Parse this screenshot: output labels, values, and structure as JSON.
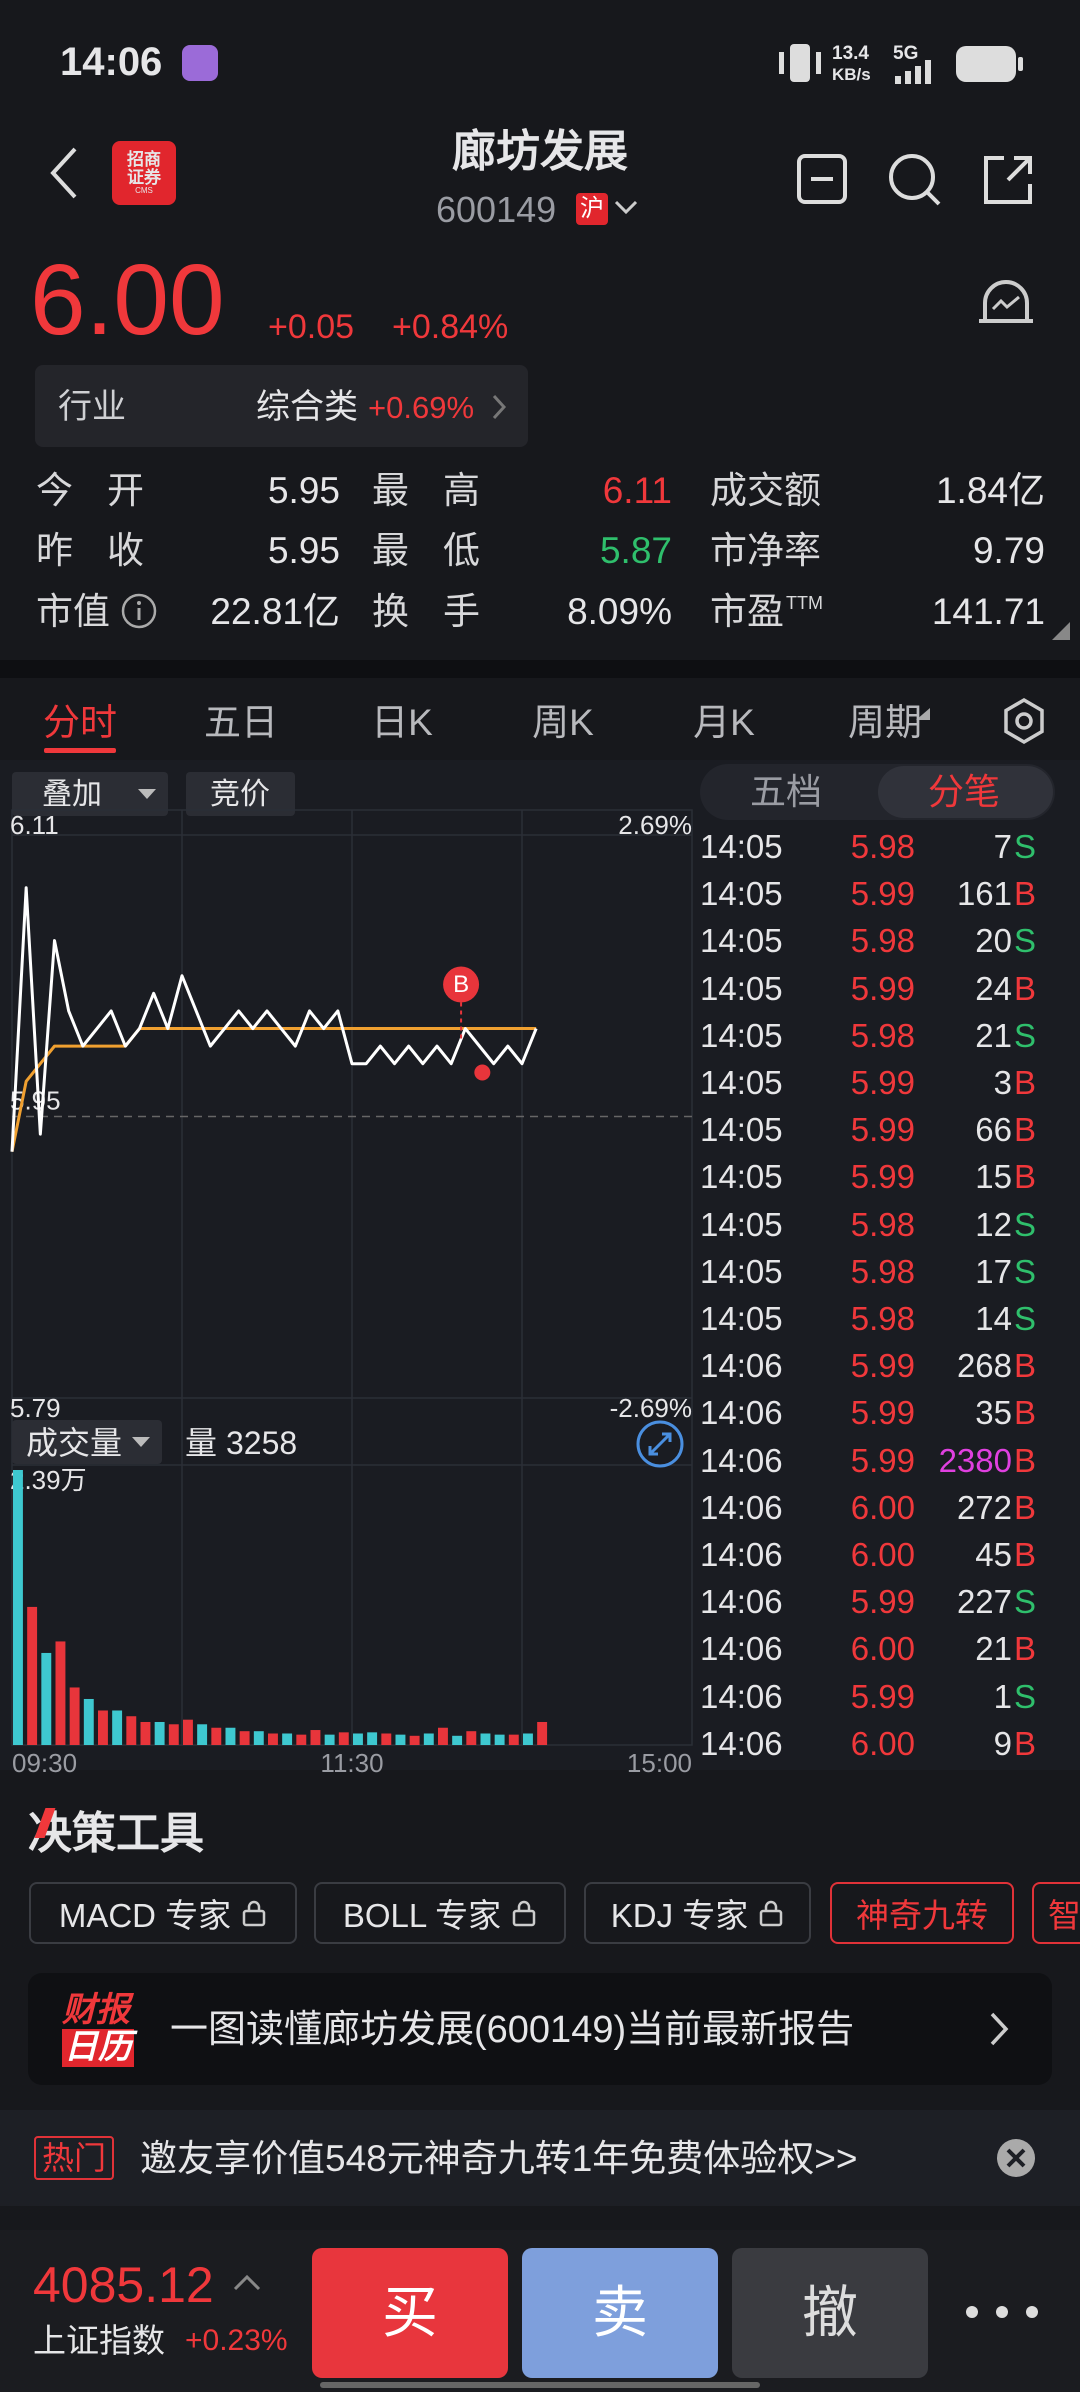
{
  "status": {
    "time": "14:06",
    "speed": "13.4",
    "speed_unit": "KB/s",
    "network": "5G"
  },
  "header": {
    "logo": "招商证券",
    "logo_sub": "CMS",
    "title": "廊坊发展",
    "code": "600149",
    "exchange": "沪"
  },
  "quote": {
    "price": "6.00",
    "change": "+0.05",
    "change_pct": "+0.84%"
  },
  "industry": {
    "label": "行业",
    "name": "综合类",
    "change_pct": "+0.69%"
  },
  "stats": {
    "open_label": "今开",
    "open": "5.95",
    "high_label": "最高",
    "high": "6.11",
    "amount_label": "成交额",
    "amount": "1.84亿",
    "prev_label": "昨收",
    "prev": "5.95",
    "low_label": "最低",
    "low": "5.87",
    "pb_label": "市净率",
    "pb": "9.79",
    "cap_label": "市值",
    "cap": "22.81亿",
    "turnover_label": "换手",
    "turnover": "8.09%",
    "pe_label": "市盈",
    "pe_sup": "TTM",
    "pe": "141.71"
  },
  "tabs": [
    "分时",
    "五日",
    "日K",
    "周K",
    "月K",
    "周期"
  ],
  "chart_controls": {
    "overlay": "叠加",
    "auction": "竞价",
    "volume_label": "成交量",
    "volume_prefix": "量",
    "volume": "3258"
  },
  "chart_data": [
    {
      "type": "line",
      "ylim": [
        5.79,
        6.11
      ],
      "yticks": [
        6.11,
        5.95,
        5.79
      ],
      "y2lim": [
        -2.69,
        2.69
      ],
      "y2ticks": [
        {
          "value": 2.69,
          "label": "2.69%"
        },
        {
          "value": -2.69,
          "label": "-2.69%"
        }
      ],
      "xticks": [
        "09:30",
        "11:30",
        "15:00"
      ],
      "annotation": "B",
      "series": [
        {
          "color": "#ffffff",
          "values": [
            5.93,
            6.08,
            5.94,
            6.05,
            6.01,
            5.99,
            6.0,
            6.01,
            5.99,
            6.0,
            6.02,
            6.0,
            6.03,
            6.01,
            5.99,
            6.0,
            6.01,
            6.0,
            6.01,
            6.0,
            5.99,
            6.01,
            6.0,
            6.01,
            5.98,
            5.98,
            5.99,
            5.98,
            5.99,
            5.98,
            5.99,
            5.98,
            6.0,
            5.99,
            5.98,
            5.99,
            5.98,
            6.0
          ]
        },
        {
          "color": "#f0a030",
          "values": [
            5.93,
            5.97,
            5.98,
            5.99,
            5.99,
            5.99,
            5.99,
            5.99,
            5.99,
            6.0,
            6.0,
            6.0,
            6.0,
            6.0,
            6.0,
            6.0,
            6.0,
            6.0,
            6.0,
            6.0,
            6.0,
            6.0,
            6.0,
            6.0,
            6.0,
            6.0,
            6.0,
            6.0,
            6.0,
            6.0,
            6.0,
            6.0,
            6.0,
            6.0,
            6.0,
            6.0,
            6.0,
            6.0
          ]
        }
      ]
    },
    {
      "type": "bar",
      "ylim": [
        0,
        23900
      ],
      "yticks": [
        {
          "value": 23900,
          "label": "2.39万"
        }
      ],
      "series": [
        {
          "color": "#e8353b",
          "values": [
            null,
            12000,
            null,
            9000,
            5000,
            null,
            3000,
            null,
            2500,
            2000,
            null,
            1800,
            2200,
            null,
            1500,
            null,
            1200,
            null,
            1000,
            null,
            900,
            1300,
            null,
            1100,
            null,
            null,
            1000,
            null,
            800,
            null,
            1500,
            null,
            1200,
            null,
            null,
            900,
            null,
            2000
          ]
        },
        {
          "color": "#3ec8d0",
          "values": [
            23900,
            null,
            8000,
            null,
            null,
            4000,
            null,
            3000,
            null,
            null,
            2000,
            null,
            null,
            1800,
            null,
            1500,
            null,
            1200,
            null,
            1000,
            null,
            null,
            900,
            null,
            1000,
            1100,
            null,
            900,
            null,
            1000,
            null,
            800,
            null,
            1000,
            900,
            null,
            1000,
            null
          ]
        }
      ]
    }
  ],
  "order_tabs": [
    "五档",
    "分笔"
  ],
  "side_colors": {
    "B": "#f0383b",
    "S": "#2fbf6c"
  },
  "ticks": [
    [
      "14:05",
      "5.98",
      7,
      "S"
    ],
    [
      "14:05",
      "5.99",
      161,
      "B"
    ],
    [
      "14:05",
      "5.98",
      20,
      "S"
    ],
    [
      "14:05",
      "5.99",
      24,
      "B"
    ],
    [
      "14:05",
      "5.98",
      21,
      "S"
    ],
    [
      "14:05",
      "5.99",
      3,
      "B"
    ],
    [
      "14:05",
      "5.99",
      66,
      "B"
    ],
    [
      "14:05",
      "5.99",
      15,
      "B"
    ],
    [
      "14:05",
      "5.98",
      12,
      "S"
    ],
    [
      "14:05",
      "5.98",
      17,
      "S"
    ],
    [
      "14:05",
      "5.98",
      14,
      "S"
    ],
    [
      "14:06",
      "5.99",
      268,
      "B"
    ],
    [
      "14:06",
      "5.99",
      35,
      "B"
    ],
    [
      "14:06",
      "5.99",
      2380,
      "B"
    ],
    [
      "14:06",
      "6.00",
      272,
      "B"
    ],
    [
      "14:06",
      "6.00",
      45,
      "B"
    ],
    [
      "14:06",
      "5.99",
      227,
      "S"
    ],
    [
      "14:06",
      "6.00",
      21,
      "B"
    ],
    [
      "14:06",
      "5.99",
      1,
      "S"
    ],
    [
      "14:06",
      "6.00",
      9,
      "B"
    ]
  ],
  "tools": {
    "title": "决策工具",
    "buttons": [
      "MACD 专家",
      "BOLL 专家",
      "KDJ 专家",
      "神奇九转",
      "智"
    ]
  },
  "report": {
    "icon": [
      "财报",
      "日历"
    ],
    "text": "一图读懂廊坊发展(600149)当前最新报告"
  },
  "promo": {
    "tag": "热门",
    "text": "邀友享价值548元神奇九转1年免费体验权>>"
  },
  "footer": {
    "index_value": "4085.12",
    "index_name": "上证指数",
    "index_change": "+0.23%",
    "buy": "买",
    "sell": "卖",
    "cancel": "撤"
  }
}
